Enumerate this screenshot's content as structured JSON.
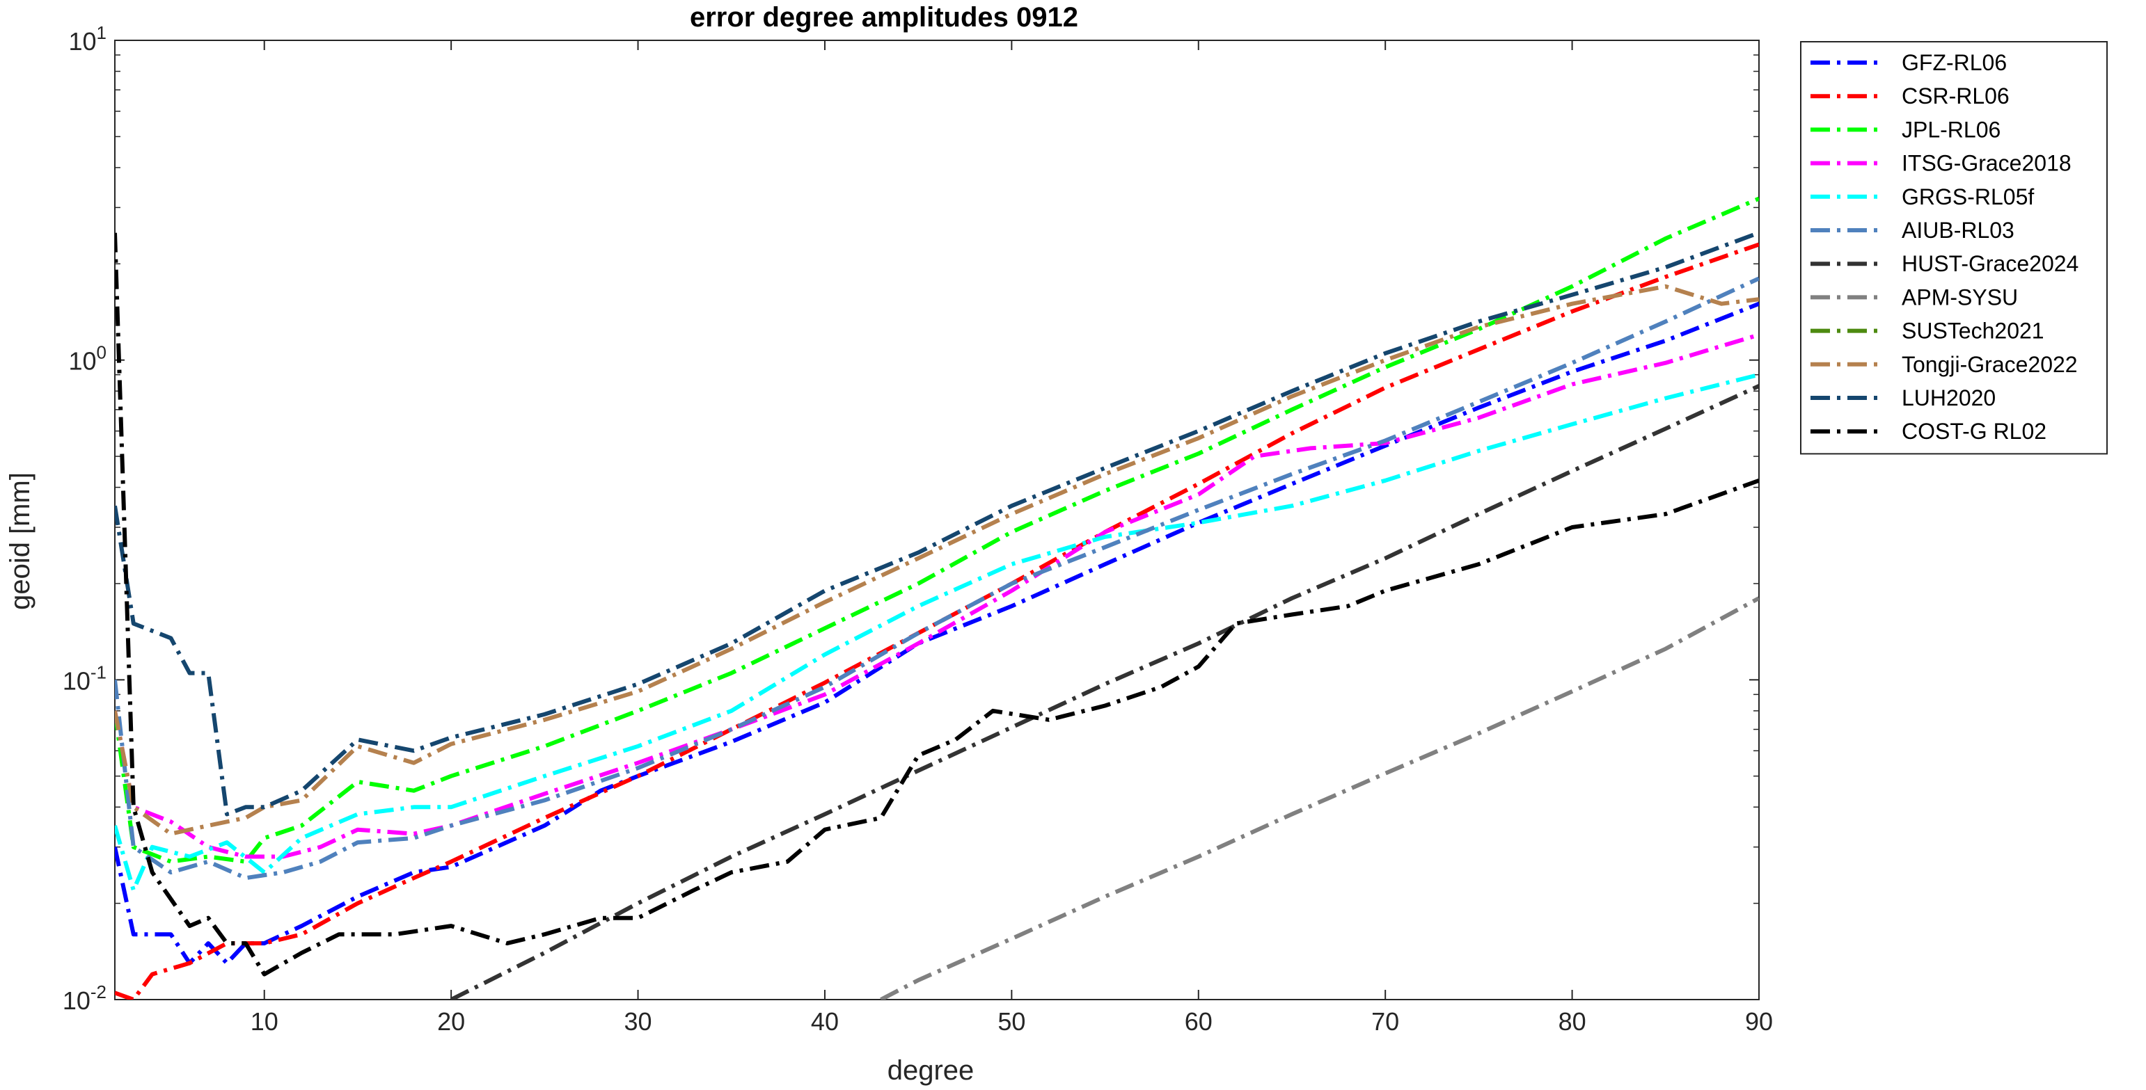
{
  "chart_data": {
    "type": "line",
    "title": "error degree amplitudes 0912",
    "xlabel": "degree",
    "ylabel": "geoid [mm]",
    "xlim": [
      2,
      90
    ],
    "ylim": [
      0.01,
      10
    ],
    "yscale": "log",
    "grid": false,
    "legend_position": "outside-right",
    "xticks": [
      10,
      20,
      30,
      40,
      50,
      60,
      70,
      80,
      90
    ],
    "xtick_labels": [
      "10",
      "20",
      "30",
      "40",
      "50",
      "60",
      "70",
      "80",
      "90"
    ],
    "yticks": [
      {
        "value": 10,
        "base": "10",
        "exp": "1"
      },
      {
        "value": 1,
        "base": "10",
        "exp": "0"
      },
      {
        "value": 0.1,
        "base": "10",
        "exp": "-1"
      },
      {
        "value": 0.01,
        "base": "10",
        "exp": "-2"
      }
    ],
    "series": [
      {
        "name": "GFZ-RL06",
        "color": "#0000ff",
        "dash": "dashdot",
        "points": [
          [
            2,
            0.03
          ],
          [
            3,
            0.016
          ],
          [
            5,
            0.016
          ],
          [
            6,
            0.013
          ],
          [
            7,
            0.015
          ],
          [
            8,
            0.013
          ],
          [
            9,
            0.015
          ],
          [
            10,
            0.015
          ],
          [
            12,
            0.017
          ],
          [
            15,
            0.021
          ],
          [
            18,
            0.025
          ],
          [
            20,
            0.026
          ],
          [
            25,
            0.035
          ],
          [
            28,
            0.045
          ],
          [
            30,
            0.05
          ],
          [
            35,
            0.064
          ],
          [
            40,
            0.085
          ],
          [
            45,
            0.13
          ],
          [
            50,
            0.17
          ],
          [
            55,
            0.23
          ],
          [
            60,
            0.31
          ],
          [
            65,
            0.41
          ],
          [
            70,
            0.54
          ],
          [
            75,
            0.71
          ],
          [
            80,
            0.92
          ],
          [
            85,
            1.15
          ],
          [
            90,
            1.5
          ]
        ]
      },
      {
        "name": "CSR-RL06",
        "color": "#ff0000",
        "dash": "dashdot",
        "points": [
          [
            2,
            0.0105
          ],
          [
            3,
            0.01
          ],
          [
            4,
            0.012
          ],
          [
            6,
            0.013
          ],
          [
            8,
            0.015
          ],
          [
            10,
            0.015
          ],
          [
            12,
            0.016
          ],
          [
            15,
            0.02
          ],
          [
            18,
            0.024
          ],
          [
            20,
            0.027
          ],
          [
            25,
            0.037
          ],
          [
            30,
            0.05
          ],
          [
            35,
            0.07
          ],
          [
            40,
            0.098
          ],
          [
            45,
            0.14
          ],
          [
            50,
            0.2
          ],
          [
            55,
            0.29
          ],
          [
            60,
            0.41
          ],
          [
            65,
            0.59
          ],
          [
            70,
            0.82
          ],
          [
            75,
            1.08
          ],
          [
            80,
            1.42
          ],
          [
            85,
            1.82
          ],
          [
            90,
            2.3
          ]
        ]
      },
      {
        "name": "JPL-RL06",
        "color": "#00ff00",
        "dash": "dashdot",
        "points": [
          [
            2,
            0.08
          ],
          [
            3,
            0.03
          ],
          [
            5,
            0.027
          ],
          [
            7,
            0.028
          ],
          [
            9,
            0.027
          ],
          [
            10,
            0.032
          ],
          [
            12,
            0.035
          ],
          [
            15,
            0.048
          ],
          [
            18,
            0.045
          ],
          [
            20,
            0.05
          ],
          [
            25,
            0.062
          ],
          [
            30,
            0.08
          ],
          [
            35,
            0.105
          ],
          [
            40,
            0.145
          ],
          [
            45,
            0.2
          ],
          [
            50,
            0.29
          ],
          [
            55,
            0.39
          ],
          [
            60,
            0.51
          ],
          [
            65,
            0.7
          ],
          [
            70,
            0.95
          ],
          [
            75,
            1.25
          ],
          [
            80,
            1.7
          ],
          [
            85,
            2.4
          ],
          [
            90,
            3.2
          ]
        ]
      },
      {
        "name": "ITSG-Grace2018",
        "color": "#ff00ff",
        "dash": "dashdot",
        "points": [
          [
            2,
            0.08
          ],
          [
            3,
            0.04
          ],
          [
            5,
            0.036
          ],
          [
            7,
            0.03
          ],
          [
            9,
            0.028
          ],
          [
            11,
            0.028
          ],
          [
            13,
            0.03
          ],
          [
            15,
            0.034
          ],
          [
            18,
            0.033
          ],
          [
            20,
            0.035
          ],
          [
            25,
            0.044
          ],
          [
            30,
            0.055
          ],
          [
            35,
            0.07
          ],
          [
            40,
            0.09
          ],
          [
            45,
            0.13
          ],
          [
            50,
            0.19
          ],
          [
            55,
            0.29
          ],
          [
            60,
            0.38
          ],
          [
            63,
            0.5
          ],
          [
            66,
            0.53
          ],
          [
            70,
            0.55
          ],
          [
            75,
            0.66
          ],
          [
            80,
            0.84
          ],
          [
            85,
            0.98
          ],
          [
            90,
            1.2
          ]
        ]
      },
      {
        "name": "GRGS-RL05f",
        "color": "#00ffff",
        "dash": "dashdot",
        "points": [
          [
            2,
            0.035
          ],
          [
            3,
            0.022
          ],
          [
            4,
            0.03
          ],
          [
            6,
            0.028
          ],
          [
            8,
            0.031
          ],
          [
            10,
            0.025
          ],
          [
            12,
            0.032
          ],
          [
            15,
            0.038
          ],
          [
            18,
            0.04
          ],
          [
            20,
            0.04
          ],
          [
            25,
            0.05
          ],
          [
            30,
            0.062
          ],
          [
            35,
            0.08
          ],
          [
            40,
            0.12
          ],
          [
            45,
            0.17
          ],
          [
            50,
            0.23
          ],
          [
            55,
            0.28
          ],
          [
            60,
            0.31
          ],
          [
            65,
            0.35
          ],
          [
            70,
            0.42
          ],
          [
            75,
            0.52
          ],
          [
            80,
            0.63
          ],
          [
            85,
            0.76
          ],
          [
            90,
            0.9
          ]
        ]
      },
      {
        "name": "AIUB-RL03",
        "color": "#4f81bd",
        "dash": "dashdot",
        "points": [
          [
            2,
            0.1
          ],
          [
            3,
            0.03
          ],
          [
            5,
            0.025
          ],
          [
            7,
            0.027
          ],
          [
            9,
            0.024
          ],
          [
            11,
            0.025
          ],
          [
            13,
            0.027
          ],
          [
            15,
            0.031
          ],
          [
            18,
            0.032
          ],
          [
            20,
            0.035
          ],
          [
            25,
            0.042
          ],
          [
            30,
            0.053
          ],
          [
            35,
            0.07
          ],
          [
            40,
            0.095
          ],
          [
            45,
            0.14
          ],
          [
            50,
            0.2
          ],
          [
            55,
            0.26
          ],
          [
            60,
            0.34
          ],
          [
            65,
            0.44
          ],
          [
            70,
            0.56
          ],
          [
            75,
            0.74
          ],
          [
            80,
            0.98
          ],
          [
            85,
            1.32
          ],
          [
            90,
            1.8
          ]
        ]
      },
      {
        "name": "HUST-Grace2024",
        "color": "#333333",
        "dash": "dashdot",
        "points": [
          [
            20,
            0.01
          ],
          [
            25,
            0.014
          ],
          [
            30,
            0.02
          ],
          [
            35,
            0.028
          ],
          [
            40,
            0.038
          ],
          [
            45,
            0.052
          ],
          [
            50,
            0.071
          ],
          [
            55,
            0.097
          ],
          [
            60,
            0.13
          ],
          [
            65,
            0.18
          ],
          [
            70,
            0.24
          ],
          [
            75,
            0.33
          ],
          [
            80,
            0.45
          ],
          [
            85,
            0.61
          ],
          [
            90,
            0.83
          ]
        ]
      },
      {
        "name": "APM-SYSU",
        "color": "#808080",
        "dash": "dashdot",
        "points": [
          [
            43,
            0.01
          ],
          [
            45,
            0.0115
          ],
          [
            50,
            0.0155
          ],
          [
            55,
            0.021
          ],
          [
            60,
            0.028
          ],
          [
            65,
            0.038
          ],
          [
            70,
            0.051
          ],
          [
            75,
            0.068
          ],
          [
            80,
            0.092
          ],
          [
            85,
            0.125
          ],
          [
            90,
            0.18
          ]
        ]
      },
      {
        "name": "SUSTech2021",
        "color": "#4d8a10",
        "dash": "dashdot",
        "points": []
      },
      {
        "name": "Tongji-Grace2022",
        "color": "#b5814e",
        "dash": "dashdot",
        "points": [
          [
            2,
            0.08
          ],
          [
            3,
            0.04
          ],
          [
            5,
            0.033
          ],
          [
            7,
            0.035
          ],
          [
            9,
            0.037
          ],
          [
            10,
            0.04
          ],
          [
            12,
            0.042
          ],
          [
            15,
            0.062
          ],
          [
            18,
            0.055
          ],
          [
            20,
            0.063
          ],
          [
            25,
            0.075
          ],
          [
            30,
            0.092
          ],
          [
            35,
            0.125
          ],
          [
            40,
            0.175
          ],
          [
            45,
            0.24
          ],
          [
            50,
            0.33
          ],
          [
            55,
            0.44
          ],
          [
            60,
            0.57
          ],
          [
            65,
            0.77
          ],
          [
            70,
            1.0
          ],
          [
            75,
            1.27
          ],
          [
            80,
            1.5
          ],
          [
            85,
            1.7
          ],
          [
            88,
            1.5
          ],
          [
            90,
            1.55
          ]
        ]
      },
      {
        "name": "LUH2020",
        "color": "#15466e",
        "dash": "dashdot",
        "points": [
          [
            2,
            0.35
          ],
          [
            3,
            0.15
          ],
          [
            5,
            0.135
          ],
          [
            6,
            0.105
          ],
          [
            7,
            0.105
          ],
          [
            8,
            0.038
          ],
          [
            9,
            0.04
          ],
          [
            10,
            0.04
          ],
          [
            12,
            0.045
          ],
          [
            15,
            0.065
          ],
          [
            18,
            0.06
          ],
          [
            20,
            0.066
          ],
          [
            25,
            0.078
          ],
          [
            30,
            0.097
          ],
          [
            35,
            0.13
          ],
          [
            40,
            0.19
          ],
          [
            45,
            0.25
          ],
          [
            50,
            0.35
          ],
          [
            55,
            0.46
          ],
          [
            60,
            0.6
          ],
          [
            65,
            0.8
          ],
          [
            70,
            1.05
          ],
          [
            75,
            1.32
          ],
          [
            80,
            1.6
          ],
          [
            85,
            1.95
          ],
          [
            90,
            2.5
          ]
        ]
      },
      {
        "name": "COST-G RL02",
        "color": "#000000",
        "dash": "dashdot",
        "points": [
          [
            2,
            2.5
          ],
          [
            3,
            0.04
          ],
          [
            4,
            0.025
          ],
          [
            6,
            0.017
          ],
          [
            7,
            0.018
          ],
          [
            8,
            0.015
          ],
          [
            9,
            0.015
          ],
          [
            10,
            0.012
          ],
          [
            12,
            0.014
          ],
          [
            14,
            0.016
          ],
          [
            17,
            0.016
          ],
          [
            20,
            0.017
          ],
          [
            23,
            0.015
          ],
          [
            25,
            0.016
          ],
          [
            28,
            0.018
          ],
          [
            30,
            0.018
          ],
          [
            33,
            0.022
          ],
          [
            35,
            0.025
          ],
          [
            38,
            0.027
          ],
          [
            40,
            0.034
          ],
          [
            43,
            0.037
          ],
          [
            45,
            0.058
          ],
          [
            47,
            0.065
          ],
          [
            49,
            0.08
          ],
          [
            52,
            0.075
          ],
          [
            55,
            0.083
          ],
          [
            58,
            0.095
          ],
          [
            60,
            0.11
          ],
          [
            62,
            0.15
          ],
          [
            65,
            0.16
          ],
          [
            68,
            0.17
          ],
          [
            70,
            0.19
          ],
          [
            75,
            0.23
          ],
          [
            80,
            0.3
          ],
          [
            85,
            0.33
          ],
          [
            90,
            0.42
          ]
        ]
      }
    ]
  }
}
